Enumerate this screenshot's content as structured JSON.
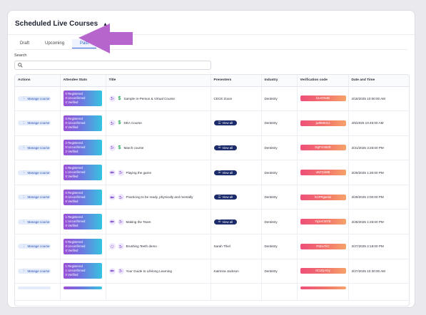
{
  "header": {
    "title": "Scheduled Live Courses"
  },
  "tabs": [
    {
      "label": "Draft",
      "active": false
    },
    {
      "label": "Upcoming",
      "active": false
    },
    {
      "label": "Past",
      "active": true
    }
  ],
  "search": {
    "label": "Search",
    "placeholder": ""
  },
  "table": {
    "columns": [
      "Actions",
      "Attendee Stats",
      "Title",
      "Presenters",
      "Industry",
      "Verification code",
      "Date and Time"
    ],
    "manage_label": "Manage course",
    "view_all_label": "View all",
    "rows": [
      {
        "stats": [
          "0 Registered",
          "0 Unconfirmed",
          "0 Verified"
        ],
        "title": "Sample In-Person & Virtual Course",
        "icons": [
          "in-person-icon",
          "dollar-icon"
        ],
        "presenter": "CECE Zoom",
        "presenter_is_button": false,
        "industry": "Dentistry",
        "code": "b1vO9vtB",
        "date": "4/18/2025 10:00:00 AM"
      },
      {
        "stats": [
          "0 Registered",
          "0 Unconfirmed",
          "0 Verified"
        ],
        "title": "DEA Course",
        "icons": [
          "in-person-icon",
          "dollar-icon"
        ],
        "presenter": "View all",
        "presenter_is_button": true,
        "industry": "Dentistry",
        "code": "jw8lWEOJ",
        "date": "4/5/2025 10:45:00 AM"
      },
      {
        "stats": [
          "2 Registered",
          "0 Unconfirmed",
          "2 Verified"
        ],
        "title": "March course",
        "icons": [
          "in-person-icon",
          "dollar-icon"
        ],
        "presenter": "View all",
        "presenter_is_button": true,
        "industry": "Dentistry",
        "code": "DgFVc8mR",
        "date": "3/31/2025 3:25:00 PM"
      },
      {
        "stats": [
          "1 Registered",
          "1 Unconfirmed",
          "0 Verified"
        ],
        "title": "Playing the game",
        "icons": [
          "video-icon",
          "in-person-icon"
        ],
        "presenter": "View all",
        "presenter_is_button": true,
        "industry": "Dentistry",
        "code": "u5Z7pb8B",
        "date": "3/29/2025 1:30:00 PM"
      },
      {
        "stats": [
          "0 Registered",
          "0 Unconfirmed",
          "0 Verified"
        ],
        "title": "Practicing to be ready, physically and mentally",
        "icons": [
          "video-icon",
          "in-person-icon"
        ],
        "presenter": "View all",
        "presenter_is_button": true,
        "industry": "Dentistry",
        "code": "hGPRgamis",
        "date": "3/29/2025 2:00:00 PM"
      },
      {
        "stats": [
          "1 Registered",
          "1 Unconfirmed",
          "0 Verified"
        ],
        "title": "Making the Team",
        "icons": [
          "video-icon",
          "in-person-icon"
        ],
        "presenter": "View all",
        "presenter_is_button": true,
        "industry": "Dentistry",
        "code": "Yq1eCWYE",
        "date": "3/28/2025 1:25:00 PM"
      },
      {
        "stats": [
          "0 Registered",
          "0 Unconfirmed",
          "0 Verified"
        ],
        "title": "Brushing Teeth demo",
        "icons": [
          "loading-icon",
          "in-person-icon"
        ],
        "presenter": "Sarah Thiel",
        "presenter_is_button": false,
        "industry": "Dentistry",
        "code": "PSbx7lrC",
        "date": "3/27/2025 2:18:00 PM"
      },
      {
        "stats": [
          "1 Registered",
          "1 Unconfirmed",
          "0 Verified"
        ],
        "title": "Your Guide to Lifelong Learning",
        "icons": [
          "video-icon",
          "in-person-icon"
        ],
        "presenter": "Katrinna Jackson",
        "presenter_is_button": false,
        "industry": "Dentistry",
        "code": "0CtJQAGy",
        "date": "3/27/2025 10:30:00 AM"
      }
    ]
  },
  "colors": {
    "accent": "#2b63d9",
    "arrow": "#b565cc",
    "view_all_bg": "#1c2c6b",
    "manage_bg": "#e4ecfb"
  }
}
